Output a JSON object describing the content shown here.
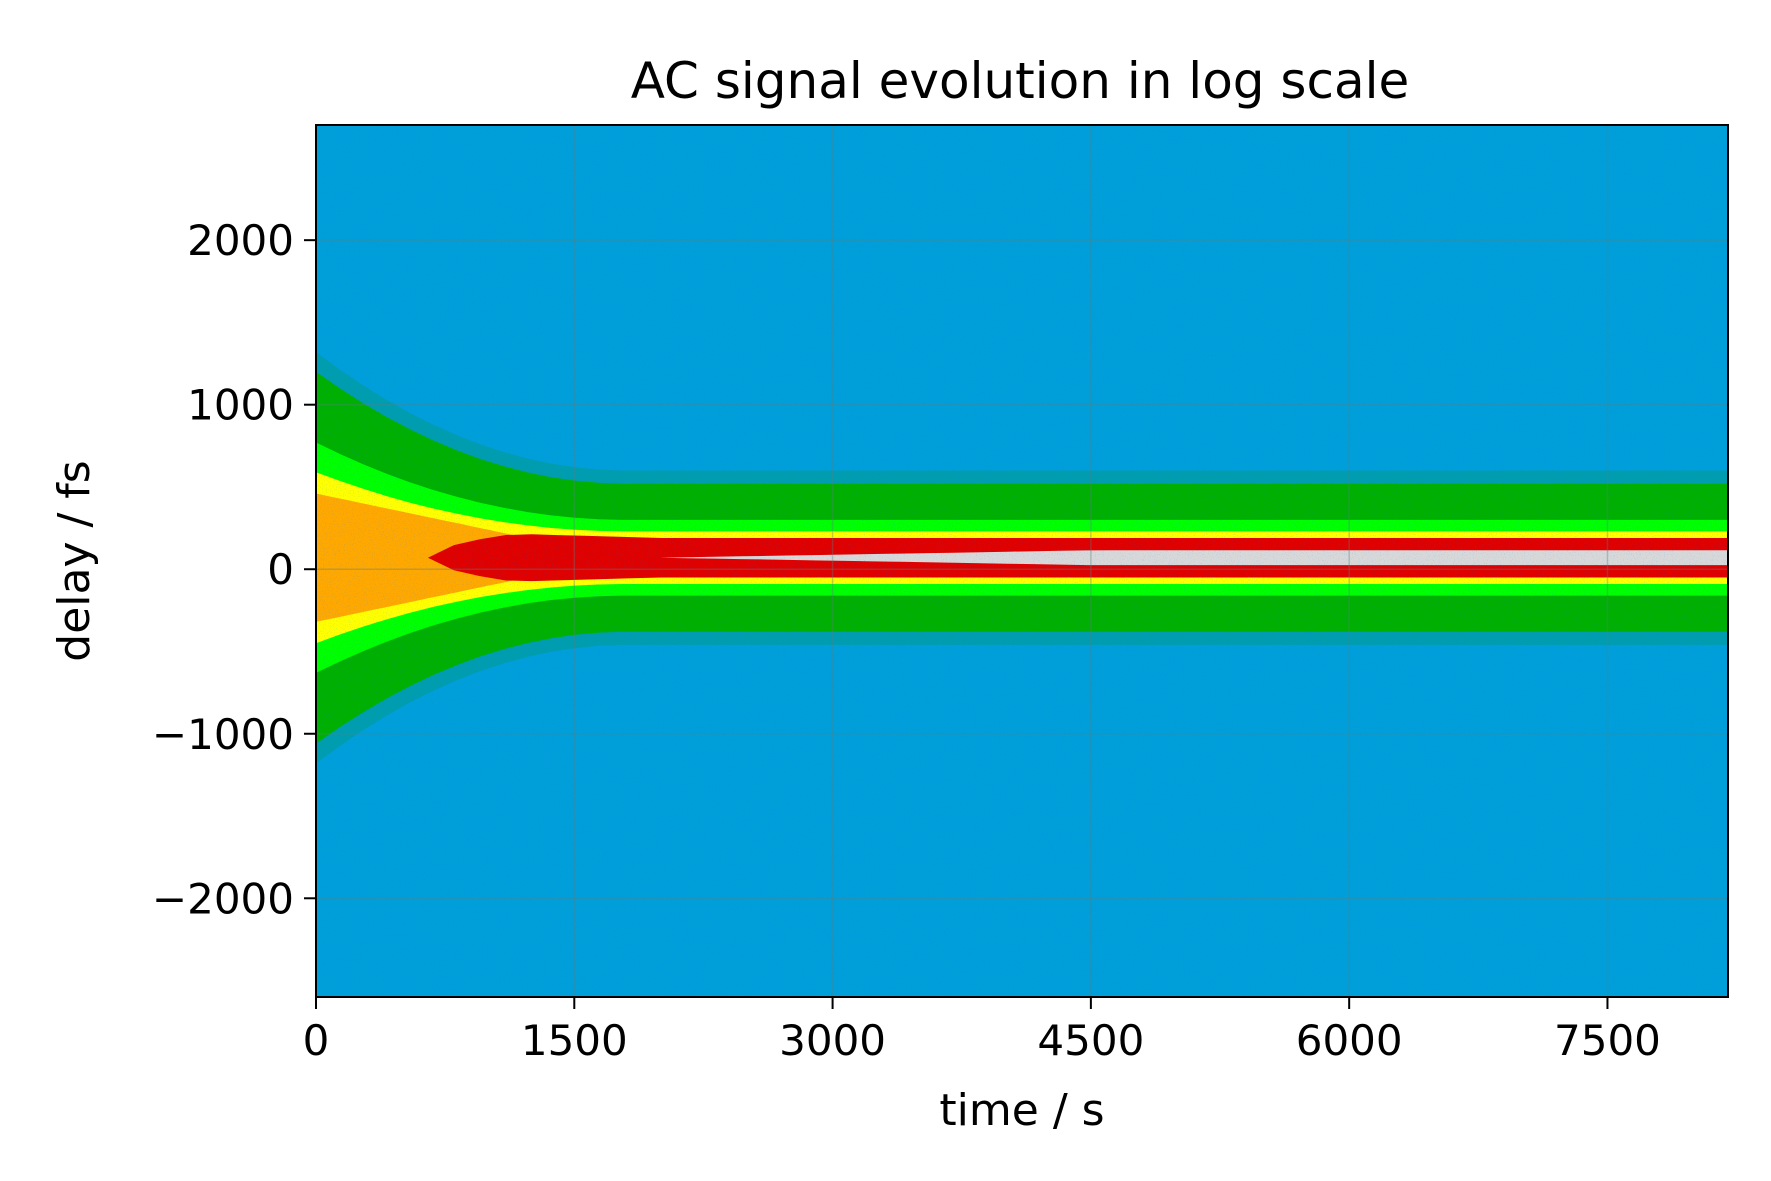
{
  "chart_data": {
    "type": "heatmap",
    "title": "AC signal evolution in log scale",
    "xlabel": "time / s",
    "ylabel": "delay / fs",
    "xlim": [
      0,
      8200
    ],
    "ylim": [
      -2600,
      2700
    ],
    "xticks": [
      0,
      1500,
      3000,
      4500,
      6000,
      7500
    ],
    "xtick_labels": [
      "0",
      "1500",
      "3000",
      "4500",
      "6000",
      "7500"
    ],
    "yticks": [
      2000,
      1000,
      0,
      -1000,
      -2000
    ],
    "ytick_labels": [
      "2000",
      "1000",
      "0",
      "−1000",
      "−2000"
    ],
    "grid": true,
    "colormap": [
      "#0047ff",
      "#00a0d8",
      "#00b000",
      "#00ff00",
      "#ffff00",
      "#ff9900",
      "#e00000",
      "#d8d8d8"
    ],
    "signal": {
      "center_delay": 70,
      "outer_halfwidth_start": 1130,
      "outer_halfwidth_end": 450,
      "mid_halfwidth_start": 520,
      "mid_halfwidth_end": 160,
      "peak_emerges_at": 2000,
      "narrowing_done_at": 1800
    }
  }
}
